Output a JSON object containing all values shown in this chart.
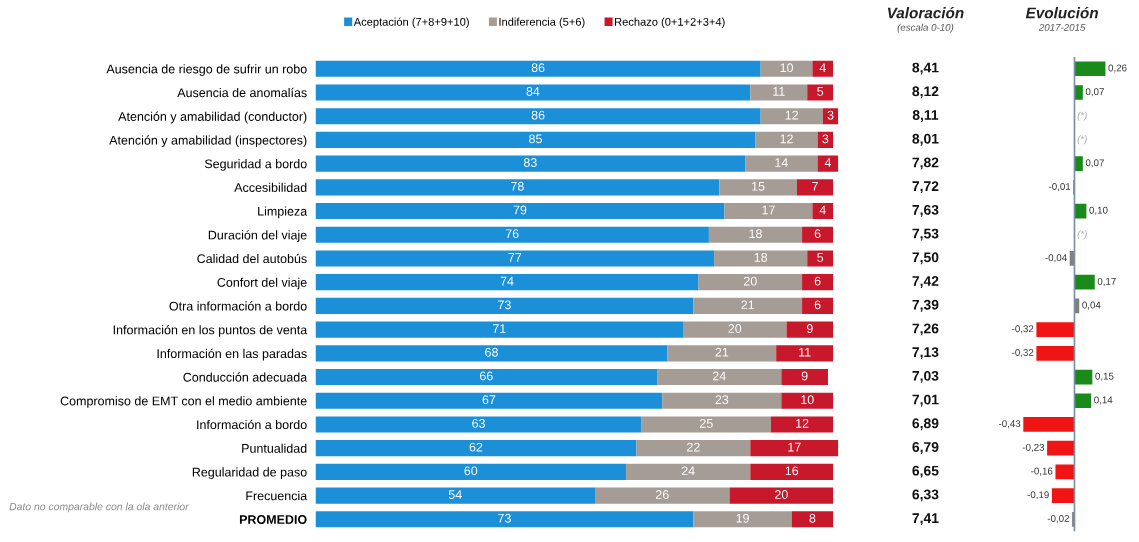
{
  "chart_data": [
    {
      "type": "bar",
      "orientation": "horizontal",
      "stacked": true,
      "legend": "top",
      "data_labels": true,
      "tick_labels": "y",
      "xlim": [
        0,
        101
      ],
      "categories": [
        "Ausencia de riesgo de sufrir un robo",
        "Ausencia de anomalías",
        "Atención y amabilidad (conductor)",
        "Atención y amabilidad (inspectores)",
        "Seguridad a bordo",
        "Accesibilidad",
        "Limpieza",
        "Duración del viaje",
        "Calidad del autobús",
        "Confort del viaje",
        "Otra información a bordo",
        "Información en los puntos de venta",
        "Información en las paradas",
        "Conducción adecuada",
        "Compromiso de EMT con el medio ambiente",
        "Información a bordo",
        "Puntualidad",
        "Regularidad de paso",
        "Frecuencia",
        "PROMEDIO"
      ],
      "series": [
        {
          "name": "Aceptación (7+8+9+10)",
          "color": "#1b8fd8",
          "values": [
            86,
            84,
            86,
            85,
            83,
            78,
            79,
            76,
            77,
            74,
            73,
            71,
            68,
            66,
            67,
            63,
            62,
            60,
            54,
            73
          ]
        },
        {
          "name": "Indiferencia (5+6)",
          "color": "#a69c96",
          "values": [
            10,
            11,
            12,
            12,
            14,
            15,
            17,
            18,
            18,
            20,
            21,
            20,
            21,
            24,
            23,
            25,
            22,
            24,
            26,
            19
          ]
        },
        {
          "name": "Rechazo (0+1+2+3+4)",
          "color": "#c8182c",
          "values": [
            4,
            5,
            3,
            3,
            4,
            7,
            4,
            6,
            5,
            6,
            6,
            9,
            11,
            9,
            10,
            12,
            17,
            16,
            20,
            8
          ]
        }
      ],
      "annotations": [
        "Dato no comparable con la ola anterior"
      ]
    },
    {
      "type": "other",
      "title": "Valoración",
      "subtitle": "(escala 0-10)",
      "categories": [
        null,
        null,
        null,
        null,
        null,
        null,
        null,
        null,
        null,
        null,
        null,
        null,
        null,
        null,
        null,
        null,
        null,
        null,
        null,
        null
      ],
      "values": [
        8.41,
        8.12,
        8.11,
        8.01,
        7.82,
        7.72,
        7.63,
        7.53,
        7.5,
        7.42,
        7.39,
        7.26,
        7.13,
        7.03,
        7.01,
        6.89,
        6.79,
        6.65,
        6.33,
        7.41
      ],
      "value_labels": [
        "8,41",
        "8,12",
        "8,11",
        "8,01",
        "7,82",
        "7,72",
        "7,63",
        "7,53",
        "7,50",
        "7,42",
        "7,39",
        "7,26",
        "7,13",
        "7,03",
        "7,01",
        "6,89",
        "6,79",
        "6,65",
        "6,33",
        "7,41"
      ]
    },
    {
      "type": "bar",
      "orientation": "horizontal",
      "title": "Evolución",
      "subtitle": "2017-2015",
      "tick_labels": false,
      "ref_lines": [
        {
          "axis": "x",
          "value": 0,
          "color": "#7890a8"
        }
      ],
      "categories": [
        null,
        null,
        null,
        null,
        null,
        null,
        null,
        null,
        null,
        null,
        null,
        null,
        null,
        null,
        null,
        null,
        null,
        null,
        null,
        null
      ],
      "values": [
        0.26,
        0.07,
        null,
        null,
        0.07,
        -0.01,
        0.1,
        null,
        -0.04,
        0.17,
        0.04,
        -0.32,
        -0.32,
        0.15,
        0.14,
        -0.43,
        -0.23,
        -0.16,
        -0.19,
        -0.02
      ],
      "colors": [
        "#1a8a1a",
        "#1a8a1a",
        null,
        null,
        "#1a8a1a",
        "#5a6e8c",
        "#1a8a1a",
        null,
        "#808080",
        "#1a8a1a",
        "#808080",
        "#f01414",
        "#f01414",
        "#1a8a1a",
        "#1a8a1a",
        "#f01414",
        "#f01414",
        "#f01414",
        "#f01414",
        "#808080"
      ],
      "value_labels": [
        "0,26",
        "0,07",
        "(*)",
        "(*)",
        "0,07",
        "-0,01",
        "0,10",
        "(*)",
        "-0,04",
        "0,17",
        "0,04",
        "-0,32",
        "-0,32",
        "0,15",
        "0,14",
        "-0,43",
        "-0,23",
        "-0,16",
        "-0,19",
        "-0,02"
      ]
    }
  ]
}
